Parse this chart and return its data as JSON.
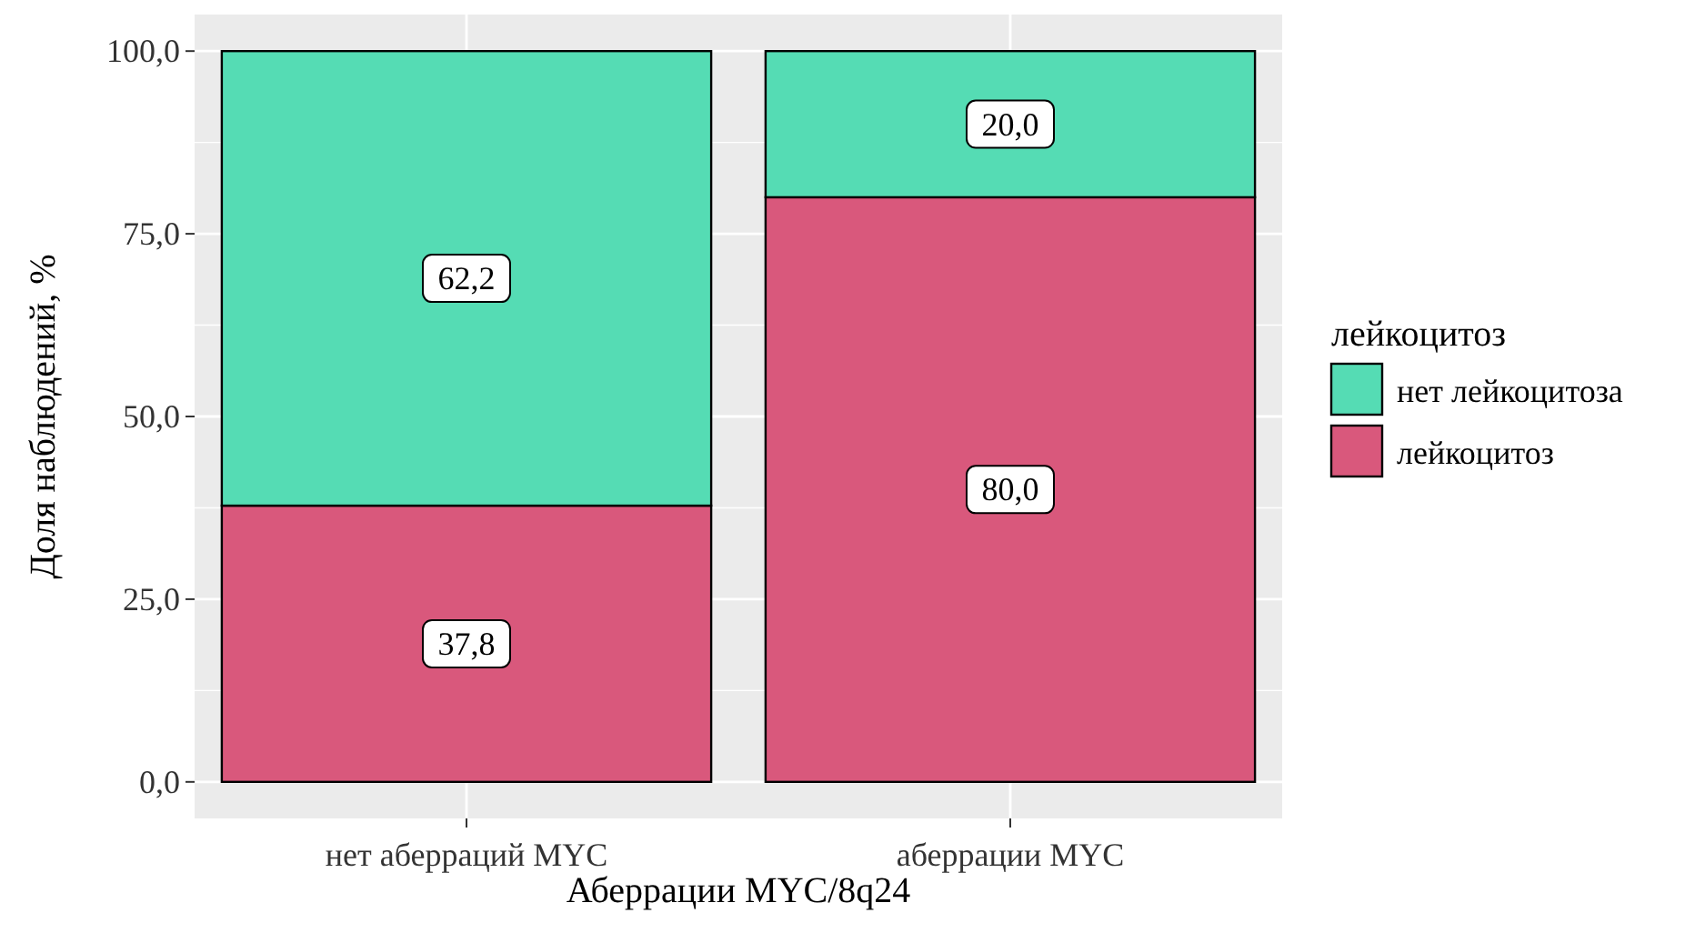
{
  "chart_data": {
    "type": "bar",
    "stacked": true,
    "xlabel": "Аберрации MYC/8q24",
    "ylabel": "Доля наблюдений, %",
    "legend_title": "лейкоцитоз",
    "legend": "right",
    "grid": true,
    "categories": [
      "нет аберраций MYC",
      "аберрации MYC"
    ],
    "ylim": [
      -5,
      105
    ],
    "yticks": [
      {
        "value": 0,
        "label": "0,0"
      },
      {
        "value": 25,
        "label": "25,0"
      },
      {
        "value": 50,
        "label": "50,0"
      },
      {
        "value": 75,
        "label": "75,0"
      },
      {
        "value": 100,
        "label": "100,0"
      }
    ],
    "series": [
      {
        "name": "лейкоцитоз",
        "color": "#d9587c",
        "values": [
          37.8,
          80.0
        ],
        "value_labels": [
          "37,8",
          "80,0"
        ]
      },
      {
        "name": "нет лейкоцитоза",
        "color": "#55dcb4",
        "values": [
          62.2,
          20.0
        ],
        "value_labels": [
          "62,2",
          "20,0"
        ]
      }
    ]
  }
}
